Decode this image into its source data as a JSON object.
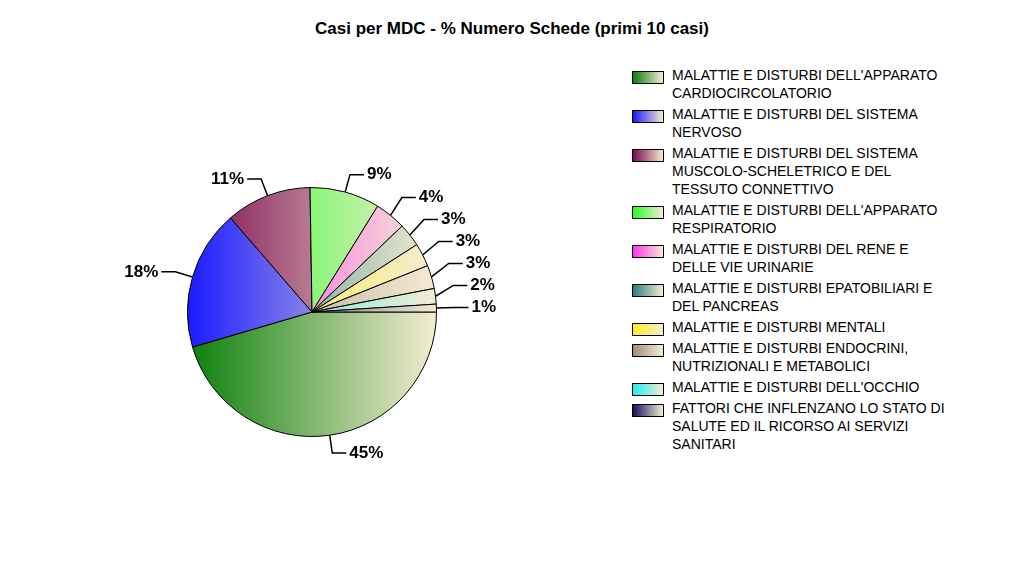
{
  "chart_data": {
    "type": "pie",
    "title": "Casi per MDC - % Numero Schede (primi 10 casi)",
    "categories": [
      "MALATTIE E DISTURBI DELL'APPARATO CARDIOCIRCOLATORIO",
      "MALATTIE E DISTURBI DEL SISTEMA NERVOSO",
      "MALATTIE E DISTURBI DEL SISTEMA MUSCOLO-SCHELETRICO E DEL TESSUTO CONNETTIVO",
      "MALATTIE E DISTURBI DELL'APPARATO RESPIRATORIO",
      "MALATTIE E DISTURBI DEL RENE E DELLE VIE URINARIE",
      "MALATTIE E DISTURBI EPATOBILIARI E DEL PANCREAS",
      "MALATTIE E DISTURBI MENTALI",
      "MALATTIE E DISTURBI ENDOCRINI, NUTRIZIONALI E METABOLICI",
      "MALATTIE E DISTURBI DELL'OCCHIO",
      "FATTORI CHE INFLENZANO LO STATO DI SALUTE ED IL RICORSO AI SERVIZI SANITARI"
    ],
    "values": [
      45,
      18,
      11,
      9,
      4,
      3,
      3,
      3,
      2,
      1
    ],
    "value_labels": [
      "45%",
      "18%",
      "11%",
      "9%",
      "4%",
      "3%",
      "3%",
      "3%",
      "2%",
      "1%"
    ],
    "colors": [
      "#0a7f0a",
      "#1a1aff",
      "#7a0a50",
      "#22ff22",
      "#ff33ee",
      "#2a7f7f",
      "#ffee22",
      "#a08c7c",
      "#22eeee",
      "#14145a"
    ],
    "data_labels": true,
    "legend": "right"
  }
}
